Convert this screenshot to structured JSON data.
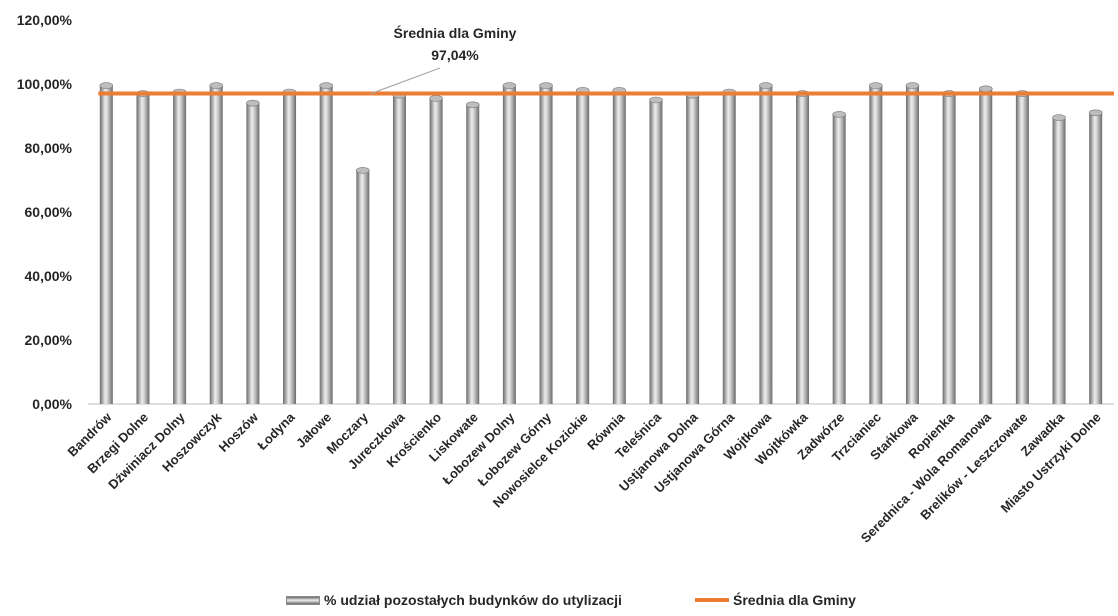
{
  "chart_data": {
    "type": "bar",
    "categories": [
      "Bandrów",
      "Brzegi Dolne",
      "Dźwiniacz Dolny",
      "Hoszowczyk",
      "Hoszów",
      "Łodyna",
      "Jałowe",
      "Moczary",
      "Jureczkowa",
      "Krościenko",
      "Liskowate",
      "Łobozew Dolny",
      "Łobozew Górny",
      "Nowosielce Kozickie",
      "Równia",
      "Teleśnica",
      "Ustjanowa Dolna",
      "Ustjanowa Górna",
      "Wojtkowa",
      "Wojtkówka",
      "Zadwórze",
      "Trzcianiec",
      "Stańkowa",
      "Ropienka",
      "Serednica - Wola Romanowa",
      "Brelików - Leszczowate",
      "Zawadka",
      "Miasto Ustrzyki Dolne"
    ],
    "series": [
      {
        "name": "% udział pozostałych budynków do utylizacji",
        "type": "bar",
        "values": [
          99.5,
          97.0,
          97.5,
          99.5,
          94.0,
          97.5,
          99.5,
          73.0,
          96.5,
          95.5,
          93.5,
          99.5,
          99.5,
          98.0,
          98.0,
          95.0,
          96.5,
          97.5,
          99.5,
          97.0,
          90.5,
          99.5,
          99.5,
          97.0,
          98.5,
          97.0,
          89.5,
          91.0
        ]
      },
      {
        "name": "Średnia dla Gminy",
        "type": "line",
        "value": 97.04,
        "color": "#ED7D31"
      }
    ],
    "y_ticks": [
      "0,00%",
      "20,00%",
      "40,00%",
      "60,00%",
      "80,00%",
      "100,00%",
      "120,00%"
    ],
    "ylim": [
      0,
      120
    ],
    "grid": false,
    "legend_position": "bottom",
    "annotation": {
      "line1": "Średnia dla Gminy",
      "line2": "97,04%"
    },
    "colors": {
      "bar_dark": "#6a6a6a",
      "bar_light": "#ececec",
      "line": "#ED7D31",
      "axis": "#bfbfbf",
      "text": "#262626"
    }
  }
}
